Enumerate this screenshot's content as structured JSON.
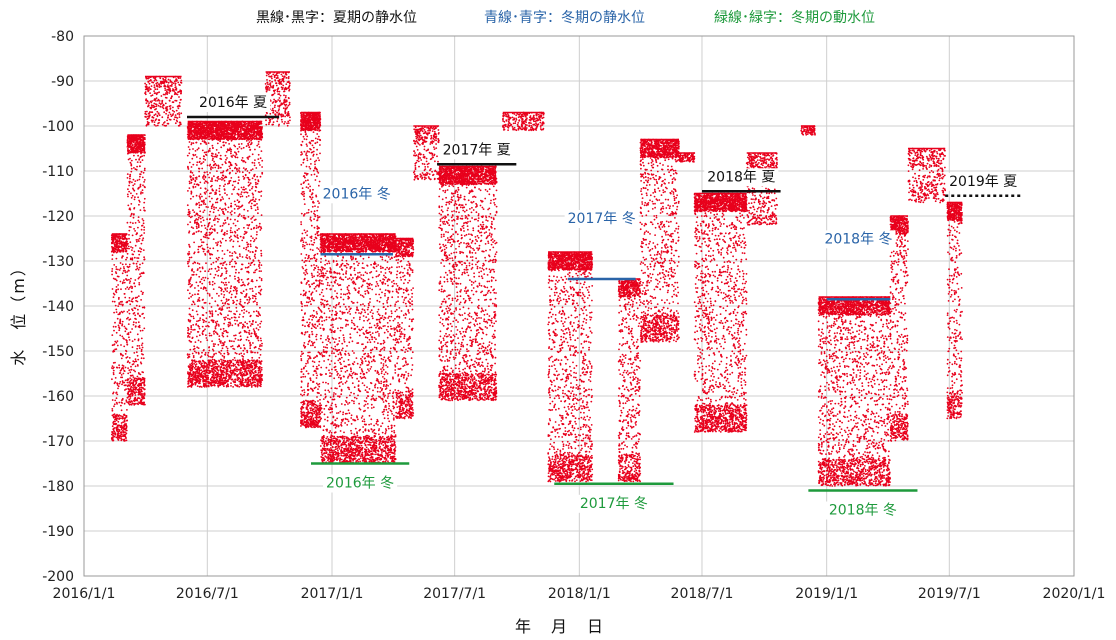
{
  "chart_data": {
    "type": "scatter",
    "legend": [
      {
        "text": "黒線･黒字：夏期の静水位",
        "color": "#111111"
      },
      {
        "text": "青線･青字：冬期の静水位",
        "color": "#2a64a8"
      },
      {
        "text": "緑線･緑字：冬期の動水位",
        "color": "#1e9a3c"
      }
    ],
    "xlabel": "年　月　日",
    "ylabel": "水　位（m）",
    "x_ticks": [
      "2016/1/1",
      "2016/7/1",
      "2017/1/1",
      "2017/7/1",
      "2018/1/1",
      "2018/7/1",
      "2019/1/1",
      "2019/7/1",
      "2020/1/1"
    ],
    "xlim": [
      "2016-01-01",
      "2020-01-01"
    ],
    "ylim": [
      -200,
      -80
    ],
    "y_ticks": [
      -80,
      -90,
      -100,
      -110,
      -120,
      -130,
      -140,
      -150,
      -160,
      -170,
      -180,
      -190,
      -200
    ],
    "grid": true,
    "series_color": "#e8001c",
    "segments": [
      {
        "start": "2016-02-11",
        "end": "2016-03-05",
        "upper": -124,
        "lower": -170
      },
      {
        "start": "2016-03-05",
        "end": "2016-03-31",
        "upper": -102,
        "lower": -162
      },
      {
        "start": "2016-03-31",
        "end": "2016-05-24",
        "upper": -89,
        "lower": -100
      },
      {
        "start": "2016-06-02",
        "end": "2016-09-20",
        "upper": -99,
        "lower": -158
      },
      {
        "start": "2016-09-25",
        "end": "2016-10-31",
        "upper": -88,
        "lower": -100
      },
      {
        "start": "2016-11-16",
        "end": "2016-12-15",
        "upper": -97,
        "lower": -167
      },
      {
        "start": "2016-12-15",
        "end": "2017-04-05",
        "upper": -124,
        "lower": -175
      },
      {
        "start": "2017-04-05",
        "end": "2017-05-01",
        "upper": -125,
        "lower": -165
      },
      {
        "start": "2017-05-01",
        "end": "2017-06-08",
        "upper": -100,
        "lower": -112
      },
      {
        "start": "2017-06-08",
        "end": "2017-09-01",
        "upper": -109,
        "lower": -161
      },
      {
        "start": "2017-09-10",
        "end": "2017-11-10",
        "upper": -97,
        "lower": -101
      },
      {
        "start": "2017-11-16",
        "end": "2018-01-20",
        "upper": -128,
        "lower": -179
      },
      {
        "start": "2018-02-28",
        "end": "2018-04-01",
        "upper": -134,
        "lower": -179
      },
      {
        "start": "2018-04-01",
        "end": "2018-05-28",
        "upper": -103,
        "lower": -148
      },
      {
        "start": "2018-05-28",
        "end": "2018-06-20",
        "upper": -106,
        "lower": -108
      },
      {
        "start": "2018-06-20",
        "end": "2018-09-05",
        "upper": -115,
        "lower": -168
      },
      {
        "start": "2018-09-05",
        "end": "2018-10-20",
        "upper": -106,
        "lower": -122
      },
      {
        "start": "2018-11-24",
        "end": "2018-12-15",
        "upper": -100,
        "lower": -102
      },
      {
        "start": "2018-12-20",
        "end": "2019-04-05",
        "upper": -138,
        "lower": -180
      },
      {
        "start": "2019-04-05",
        "end": "2019-05-01",
        "upper": -120,
        "lower": -170
      },
      {
        "start": "2019-05-01",
        "end": "2019-06-25",
        "upper": -105,
        "lower": -117
      },
      {
        "start": "2019-06-28",
        "end": "2019-07-20",
        "upper": -117,
        "lower": -165
      }
    ],
    "reference_lines": [
      {
        "label": "2016年 夏",
        "value": -98,
        "start": "2016-06-01",
        "end": "2016-10-15",
        "color": "#111111",
        "style": "solid"
      },
      {
        "label": "2016年 冬",
        "value": -128.5,
        "start": "2016-12-15",
        "end": "2017-04-01",
        "color": "#2a64a8",
        "style": "solid"
      },
      {
        "label": "2016年 冬",
        "value": -175,
        "start": "2016-12-01",
        "end": "2017-04-25",
        "color": "#1e9a3c",
        "style": "solid"
      },
      {
        "label": "2017年 夏",
        "value": -108.5,
        "start": "2017-06-05",
        "end": "2017-09-30",
        "color": "#111111",
        "style": "solid"
      },
      {
        "label": "2017年 冬",
        "value": -134,
        "start": "2017-12-15",
        "end": "2018-03-25",
        "color": "#2a64a8",
        "style": "solid"
      },
      {
        "label": "2017年 冬",
        "value": -179.5,
        "start": "2017-11-25",
        "end": "2018-05-20",
        "color": "#1e9a3c",
        "style": "solid"
      },
      {
        "label": "2018年 夏",
        "value": -114.5,
        "start": "2018-07-01",
        "end": "2018-10-25",
        "color": "#111111",
        "style": "solid"
      },
      {
        "label": "2018年 冬",
        "value": -138.5,
        "start": "2019-01-01",
        "end": "2019-04-05",
        "color": "#2a64a8",
        "style": "solid"
      },
      {
        "label": "2018年 冬",
        "value": -181,
        "start": "2018-12-05",
        "end": "2019-05-15",
        "color": "#1e9a3c",
        "style": "solid"
      },
      {
        "label": "2019年 夏",
        "value": -115.5,
        "start": "2019-06-25",
        "end": "2019-10-15",
        "color": "#111111",
        "style": "dotted"
      }
    ]
  }
}
